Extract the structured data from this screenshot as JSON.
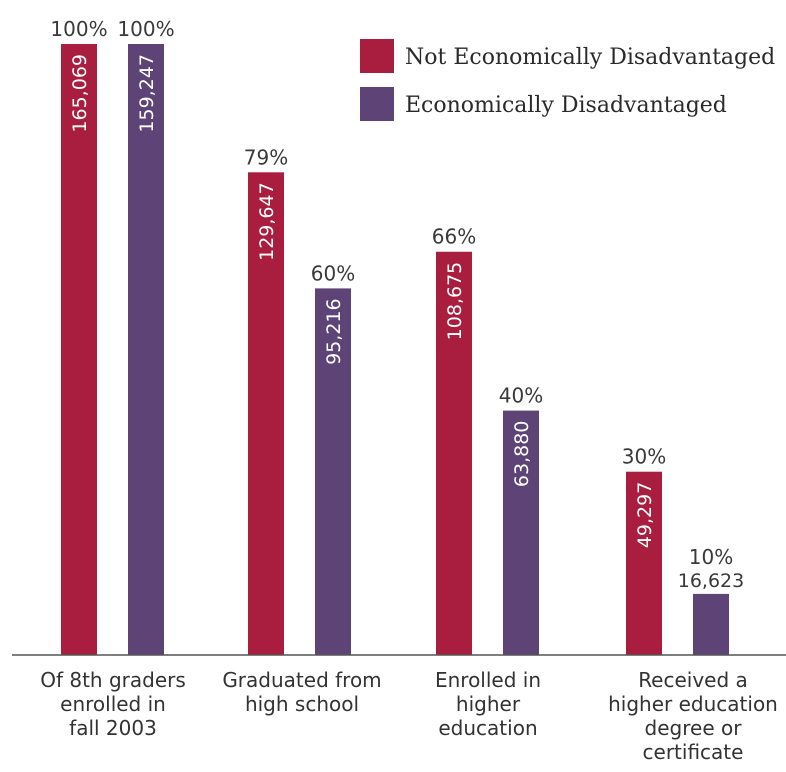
{
  "chart_data": {
    "type": "bar",
    "categories": [
      [
        "Of 8th graders",
        "enrolled in",
        "fall 2003"
      ],
      [
        "Graduated from",
        "high school"
      ],
      [
        "Enrolled in",
        "higher",
        "education"
      ],
      [
        "Received a",
        "higher education",
        "degree or",
        "certificate"
      ]
    ],
    "series": [
      {
        "name": "Not Economically Disadvantaged",
        "color": "#a91e3e",
        "values": [
          100,
          79,
          66,
          30
        ],
        "percent_labels": [
          "100%",
          "79%",
          "66%",
          "30%"
        ],
        "count_labels": [
          "165,069",
          "129,647",
          "108,675",
          "49,297"
        ]
      },
      {
        "name": "Economically Disadvantaged",
        "color": "#5e4476",
        "values": [
          100,
          60,
          40,
          10
        ],
        "percent_labels": [
          "100%",
          "60%",
          "40%",
          "10%"
        ],
        "count_labels": [
          "159,247",
          "95,216",
          "63,880",
          "16,623"
        ]
      }
    ],
    "ylim": [
      0,
      100
    ],
    "grid": false,
    "legend_position": "top-right",
    "xlabel": "",
    "ylabel": "",
    "title": ""
  }
}
